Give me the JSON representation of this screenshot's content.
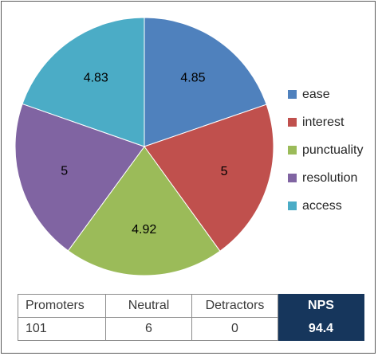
{
  "chart_data": {
    "type": "pie",
    "title": "",
    "slices": [
      {
        "name": "ease",
        "value": 4.85,
        "label": "4.85",
        "color": "#4f81bd"
      },
      {
        "name": "interest",
        "value": 5,
        "label": "5",
        "color": "#c0504d"
      },
      {
        "name": "punctuality",
        "value": 4.92,
        "label": "4.92",
        "color": "#9bbb59"
      },
      {
        "name": "resolution",
        "value": 5,
        "label": "5",
        "color": "#8064a2"
      },
      {
        "name": "access",
        "value": 4.83,
        "label": "4.83",
        "color": "#4bacc6"
      }
    ],
    "legend": "right",
    "start": "top",
    "direction": "clockwise"
  },
  "table": {
    "headers": [
      "Promoters",
      "Neutral",
      "Detractors",
      "NPS"
    ],
    "values": [
      "101",
      "6",
      "0",
      "94.4"
    ],
    "highlight_color": "#16365c"
  }
}
